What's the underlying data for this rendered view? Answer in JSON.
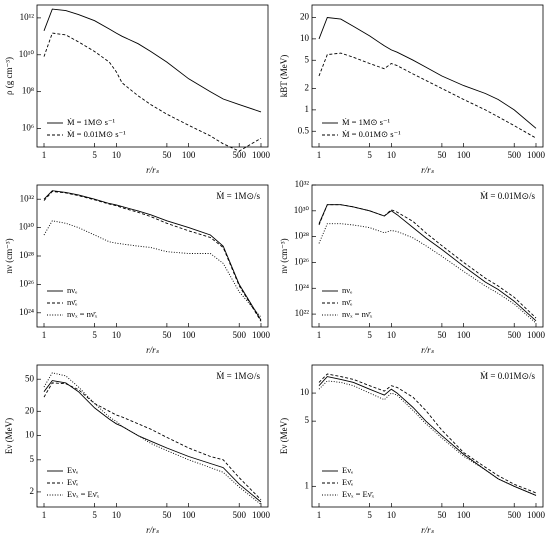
{
  "chart_data": [
    {
      "type": "line",
      "xlabel": "r/rₛ",
      "ylabel": "ρ (g cm⁻³)",
      "xscale": "log",
      "yscale": "log",
      "legend": "lower left",
      "x": [
        1,
        1.3,
        2,
        3,
        5,
        8,
        10,
        12,
        20,
        30,
        50,
        100,
        200,
        300,
        500,
        1000
      ],
      "xlim": [
        0.8,
        1250
      ],
      "xticks": [
        1,
        5,
        10,
        50,
        100,
        500,
        1000
      ],
      "ylim": [
        100000,
        5000000000000
      ],
      "yticks": [
        {
          "value": 1000000,
          "label": "10⁶"
        },
        {
          "value": 100000000,
          "label": "10⁸"
        },
        {
          "value": 10000000000,
          "label": "10¹⁰"
        },
        {
          "value": 1000000000000,
          "label": "10¹²"
        }
      ],
      "series": [
        {
          "name": "Ṁ = 1M⊙ s⁻¹",
          "color": "#000000",
          "dash": "solid",
          "values": [
            200000000000,
            3000000000000,
            2500000000000,
            1500000000000,
            700000000000,
            250000000000,
            150000000000,
            100000000000,
            40000000000,
            15000000000,
            4000000000,
            500000000,
            100000000,
            40000000,
            20000000,
            8000000
          ]
        },
        {
          "name": "Ṁ = 0.01M⊙ s⁻¹",
          "color": "#000000",
          "dash": "dashed",
          "values": [
            8000000000,
            150000000000,
            120000000000,
            50000000000,
            15000000000,
            4000000000,
            1200000000,
            300000000,
            60000000,
            20000000,
            6000000,
            1500000,
            400000,
            150000,
            60000,
            300000
          ]
        }
      ]
    },
    {
      "type": "line",
      "xlabel": "r/rₛ",
      "ylabel": "kBT (MeV)",
      "xscale": "log",
      "yscale": "log",
      "legend": "lower left",
      "x": [
        1,
        1.3,
        2,
        3,
        5,
        8,
        10,
        12,
        20,
        30,
        50,
        100,
        200,
        300,
        500,
        1000
      ],
      "xlim": [
        0.8,
        1250
      ],
      "xticks": [
        1,
        5,
        10,
        50,
        100,
        500,
        1000
      ],
      "ylim": [
        0.3,
        30
      ],
      "yticks": [
        0.5,
        1,
        2,
        5,
        10,
        20
      ],
      "series": [
        {
          "name": "Ṁ = 1M⊙ s⁻¹",
          "color": "#000000",
          "dash": "solid",
          "values": [
            10,
            20,
            19,
            15,
            11,
            8,
            7,
            6.5,
            5,
            4,
            3,
            2.2,
            1.7,
            1.4,
            1,
            0.55
          ]
        },
        {
          "name": "Ṁ = 0.01M⊙ s⁻¹",
          "color": "#000000",
          "dash": "dashed",
          "values": [
            3,
            6,
            6.3,
            5.5,
            4.5,
            3.8,
            4.5,
            4.2,
            3.2,
            2.6,
            2,
            1.4,
            1,
            0.8,
            0.6,
            0.4
          ]
        }
      ]
    },
    {
      "type": "line",
      "xlabel": "r/rₛ",
      "ylabel": "nν (cm⁻³)",
      "annotation": "Ṁ = 1M⊙/s",
      "xscale": "log",
      "yscale": "log",
      "legend": "lower left",
      "x": [
        1,
        1.3,
        2,
        3,
        5,
        8,
        10,
        12,
        20,
        30,
        50,
        100,
        200,
        300,
        500,
        1000
      ],
      "xlim": [
        0.8,
        1250
      ],
      "xticks": [
        1,
        5,
        10,
        50,
        100,
        500,
        1000
      ],
      "ylim": [
        1e+23,
        1e+33
      ],
      "yticks": [
        {
          "value": 1e+24,
          "label": "10²⁴"
        },
        {
          "value": 1e+26,
          "label": "10²⁶"
        },
        {
          "value": 1e+28,
          "label": "10²⁸"
        },
        {
          "value": 1e+30,
          "label": "10³⁰"
        },
        {
          "value": 1e+32,
          "label": "10³²"
        }
      ],
      "series": [
        {
          "name": "nνₑ",
          "color": "#000000",
          "dash": "solid",
          "values": [
            1e+32,
            4e+32,
            3e+32,
            2e+32,
            1e+32,
            5e+31,
            4e+31,
            3e+31,
            1.5e+31,
            8e+30,
            3e+30,
            1e+30,
            3e+29,
            5e+28,
            1e+26,
            3e+23
          ]
        },
        {
          "name": "nν̄ₑ",
          "color": "#000000",
          "dash": "dashed",
          "values": [
            8e+31,
            3.5e+32,
            2.8e+32,
            1.8e+32,
            9e+31,
            4.5e+31,
            3.5e+31,
            2.5e+31,
            1.2e+31,
            6e+30,
            2e+30,
            6e+29,
            2e+29,
            4e+28,
            8e+25,
            2.5e+23
          ]
        },
        {
          "name": "nνₓ = nν̄ₓ",
          "color": "#000000",
          "dash": "dotted",
          "values": [
            3e+29,
            3e+30,
            2e+30,
            1e+30,
            3e+29,
            1e+29,
            8e+28,
            7e+28,
            5e+28,
            4e+28,
            2e+28,
            1.5e+28,
            1.5e+28,
            3e+27,
            3e+25,
            5e+23
          ]
        }
      ]
    },
    {
      "type": "line",
      "xlabel": "r/rₛ",
      "ylabel": "nν (cm⁻³)",
      "annotation": "Ṁ = 0.01M⊙/s",
      "xscale": "log",
      "yscale": "log",
      "legend": "lower left",
      "x": [
        1,
        1.3,
        2,
        3,
        5,
        8,
        10,
        12,
        20,
        30,
        50,
        100,
        200,
        300,
        500,
        1000
      ],
      "xlim": [
        0.8,
        1250
      ],
      "xticks": [
        1,
        5,
        10,
        50,
        100,
        500,
        1000
      ],
      "ylim": [
        1e+21,
        1e+32
      ],
      "yticks": [
        {
          "value": 1e+22,
          "label": "10²²"
        },
        {
          "value": 1e+24,
          "label": "10²⁴"
        },
        {
          "value": 1e+26,
          "label": "10²⁶"
        },
        {
          "value": 1e+28,
          "label": "10²⁸"
        },
        {
          "value": 1e+30,
          "label": "10³⁰"
        },
        {
          "value": 1e+32,
          "label": "10³²"
        }
      ],
      "series": [
        {
          "name": "nνₑ",
          "color": "#000000",
          "dash": "solid",
          "values": [
            1e+29,
            3e+30,
            3e+30,
            2e+30,
            1e+30,
            4e+29,
            1e+30,
            5e+29,
            5e+28,
            8e+27,
            1e+27,
            5e+25,
            3e+24,
            8e+23,
            1e+23,
            3e+21
          ]
        },
        {
          "name": "nν̄ₑ",
          "color": "#000000",
          "dash": "dashed",
          "values": [
            8e+28,
            3e+30,
            3e+30,
            2e+30,
            1e+30,
            4e+29,
            1.2e+30,
            8e+29,
            1.5e+29,
            2e+28,
            2e+27,
            1e+26,
            6e+24,
            1.5e+24,
            2e+23,
            5e+21
          ]
        },
        {
          "name": "nνₓ = nν̄ₓ",
          "color": "#000000",
          "dash": "dotted",
          "values": [
            3e+27,
            1e+29,
            1e+29,
            8e+28,
            5e+28,
            2e+28,
            3e+28,
            2.5e+28,
            8e+27,
            2e+27,
            3e+26,
            2e+25,
            1.5e+24,
            4e+23,
            6e+22,
            2e+21
          ]
        }
      ]
    },
    {
      "type": "line",
      "xlabel": "r/rₛ",
      "ylabel": "Eν (MeV)",
      "annotation": "Ṁ = 1M⊙/s",
      "xscale": "log",
      "yscale": "log",
      "legend": "lower left",
      "x": [
        1,
        1.3,
        2,
        3,
        5,
        8,
        10,
        12,
        20,
        30,
        50,
        100,
        200,
        300,
        500,
        1000
      ],
      "xlim": [
        0.8,
        1250
      ],
      "xticks": [
        1,
        5,
        10,
        50,
        100,
        500,
        1000
      ],
      "ylim": [
        1.3,
        75
      ],
      "yticks": [
        2,
        5,
        10,
        20,
        50
      ],
      "series": [
        {
          "name": "Eνₑ",
          "color": "#000000",
          "dash": "solid",
          "values": [
            35,
            48,
            45,
            35,
            22,
            16,
            14,
            13,
            10,
            8.5,
            7,
            5.5,
            4.5,
            4,
            2.5,
            1.5
          ]
        },
        {
          "name": "Eν̄ₑ",
          "color": "#000000",
          "dash": "dashed",
          "values": [
            30,
            45,
            44,
            37,
            25,
            20,
            18,
            17,
            14,
            12,
            9.5,
            7,
            5.5,
            5,
            3,
            1.6
          ]
        },
        {
          "name": "Eνₓ = Eν̄ₓ",
          "color": "#000000",
          "dash": "dotted",
          "values": [
            40,
            60,
            55,
            40,
            25,
            17,
            15,
            13,
            10,
            8,
            6.5,
            5,
            4,
            3.5,
            2.3,
            1.4
          ]
        }
      ]
    },
    {
      "type": "line",
      "xlabel": "r/rₛ",
      "ylabel": "Eν (MeV)",
      "annotation": "Ṁ = 0.01M⊙/s",
      "xscale": "log",
      "yscale": "log",
      "legend": "lower left",
      "x": [
        1,
        1.3,
        2,
        3,
        5,
        8,
        10,
        12,
        20,
        30,
        50,
        100,
        200,
        300,
        500,
        1000
      ],
      "xlim": [
        0.8,
        1250
      ],
      "xticks": [
        1,
        5,
        10,
        50,
        100,
        500,
        1000
      ],
      "ylim": [
        0.6,
        20
      ],
      "yticks": [
        1,
        5,
        10
      ],
      "series": [
        {
          "name": "Eνₑ",
          "color": "#000000",
          "dash": "solid",
          "values": [
            12,
            15,
            14,
            13,
            11,
            9.5,
            11,
            10,
            7,
            5,
            3.5,
            2.2,
            1.5,
            1.2,
            1,
            0.8
          ]
        },
        {
          "name": "Eν̄ₑ",
          "color": "#000000",
          "dash": "dashed",
          "values": [
            13,
            16,
            15,
            14,
            12,
            10.5,
            12,
            11.5,
            9,
            6.5,
            4,
            2.3,
            1.6,
            1.3,
            1.05,
            0.85
          ]
        },
        {
          "name": "Eνₓ = Eν̄ₓ",
          "color": "#000000",
          "dash": "dotted",
          "values": [
            11,
            13.5,
            13,
            12,
            10,
            8.5,
            10,
            9.5,
            6.5,
            4.7,
            3.3,
            2.1,
            1.5,
            1.2,
            1,
            0.8
          ]
        }
      ]
    }
  ]
}
